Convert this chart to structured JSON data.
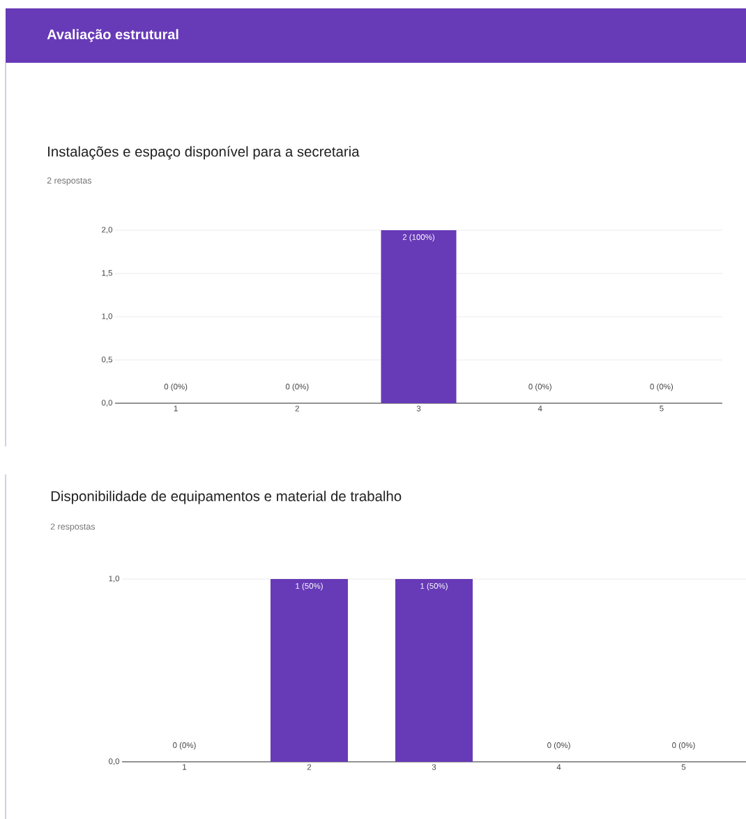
{
  "chart_data": [
    {
      "type": "bar",
      "title": "Instalações e espaço disponível para a secretaria",
      "subtitle": "2 respostas",
      "annotations": [
        "Avaliação estrutural"
      ],
      "categories": [
        "1",
        "2",
        "3",
        "4",
        "5"
      ],
      "values": [
        0,
        0,
        2,
        0,
        0
      ],
      "value_labels": [
        "0 (0%)",
        "0 (0%)",
        "2 (100%)",
        "0 (0%)",
        "0 (0%)"
      ],
      "color": "#673ab7",
      "ylim": [
        0,
        2
      ],
      "yticks": [
        {
          "value": 0,
          "label": "0,0"
        },
        {
          "value": 0.5,
          "label": "0,5"
        },
        {
          "value": 1,
          "label": "1,0"
        },
        {
          "value": 1.5,
          "label": "1,5"
        },
        {
          "value": 2,
          "label": "2,0"
        }
      ],
      "grid": "y"
    },
    {
      "type": "bar",
      "title": "Disponibilidade de equipamentos e material de trabalho",
      "subtitle": "2 respostas",
      "categories": [
        "1",
        "2",
        "3",
        "4",
        "5"
      ],
      "values": [
        0,
        1,
        1,
        0,
        0
      ],
      "value_labels": [
        "0 (0%)",
        "1 (50%)",
        "1 (50%)",
        "0 (0%)",
        "0 (0%)"
      ],
      "color": "#673ab7",
      "ylim": [
        0,
        1
      ],
      "yticks": [
        {
          "value": 0,
          "label": "0,0"
        },
        {
          "value": 1,
          "label": "1,0"
        }
      ],
      "grid": "y"
    }
  ]
}
